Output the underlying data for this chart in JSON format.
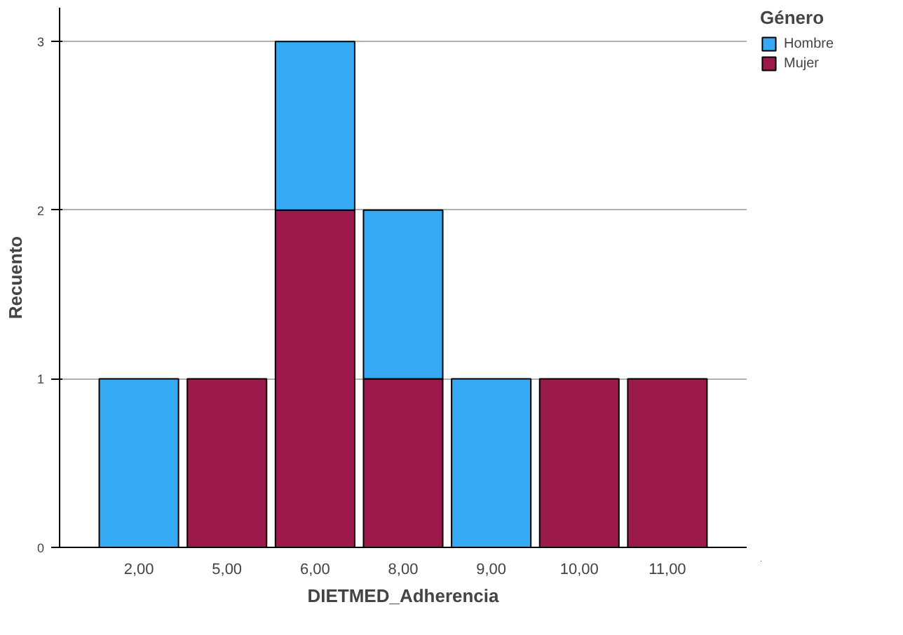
{
  "chart_data": {
    "type": "bar",
    "stacked": true,
    "xlabel": "DIETMED_Adherencia",
    "ylabel": "Recuento",
    "legend_title": "Género",
    "legend": "top right",
    "grid": "y",
    "categories": [
      "2,00",
      "5,00",
      "6,00",
      "8,00",
      "9,00",
      "10,00",
      "11,00"
    ],
    "series": [
      {
        "name": "Mujer",
        "color": "#9c1a4b",
        "values": [
          0,
          1,
          2,
          1,
          0,
          1,
          1
        ]
      },
      {
        "name": "Hombre",
        "color": "#35a9f4",
        "values": [
          1,
          0,
          1,
          1,
          1,
          0,
          0
        ]
      }
    ],
    "ylim": [
      0,
      3.2
    ],
    "yticks": [
      0,
      1,
      2,
      3
    ]
  }
}
